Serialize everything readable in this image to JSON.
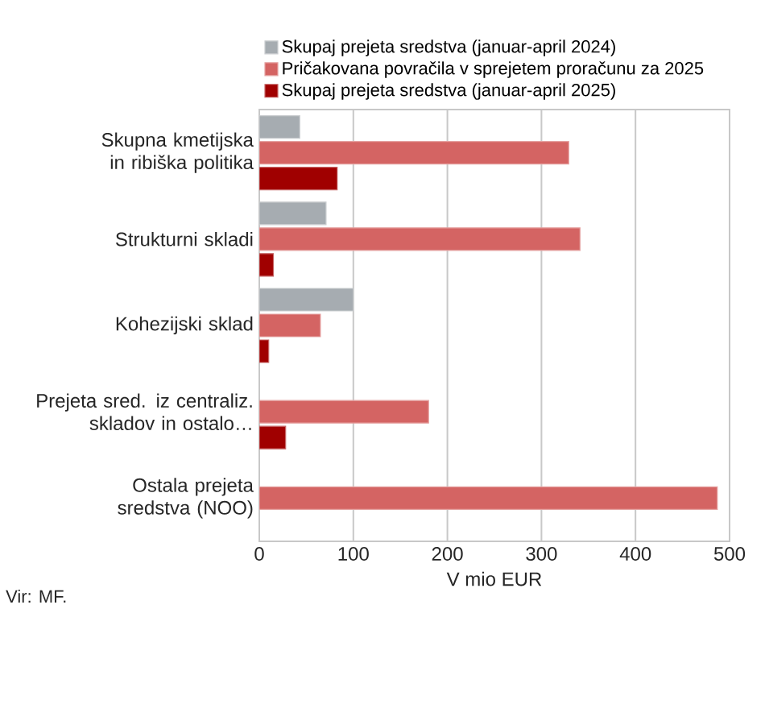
{
  "chart_data": {
    "type": "bar",
    "orientation": "horizontal",
    "categories": [
      "Skupna kmetijska in ribiška politika",
      "Strukturni skladi",
      "Kohezijski sklad",
      "Prejeta sred. iz centraliz. skladov in ostalo…",
      "Ostala prejeta sredstva (NOO)"
    ],
    "series": [
      {
        "name": "Skupaj prejeta sredstva (januar-april 2024)",
        "color": "#a6acb1",
        "values": [
          43,
          71,
          100,
          null,
          null
        ]
      },
      {
        "name": "Pričakovana povračila v sprejetem proračunu za 2025",
        "color": "#d46463",
        "values": [
          329,
          341,
          65,
          180,
          487
        ]
      },
      {
        "name": "Skupaj prejeta sredstva (januar-april 2025)",
        "color": "#a00000",
        "values": [
          83,
          15,
          10,
          28,
          null
        ]
      }
    ],
    "xlim": [
      0,
      500
    ],
    "xticks": [
      0,
      100,
      200,
      300,
      400,
      500
    ],
    "xlabel": "V mio EUR",
    "grid": "x",
    "legend": "top",
    "annotations": [
      "Vir: MF."
    ]
  }
}
